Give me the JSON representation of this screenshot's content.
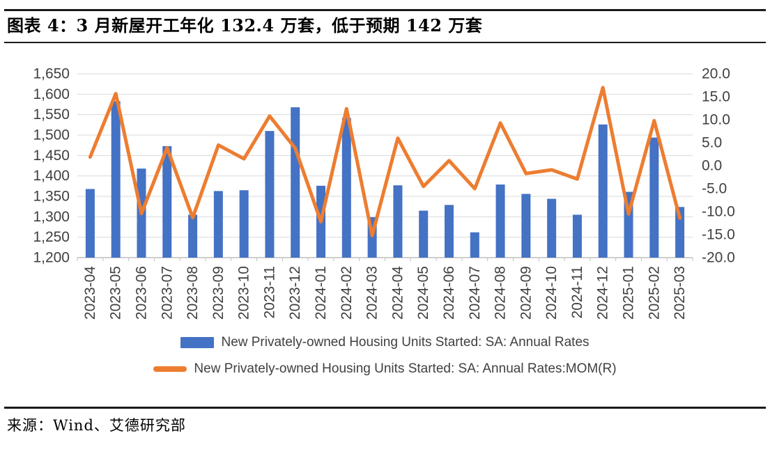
{
  "header": {
    "title": "图表 4：3 月新屋开工年化 132.4 万套，低于预期 142 万套"
  },
  "footer": {
    "source": "来源：Wind、艾德研究部"
  },
  "colors": {
    "bar": "#4472C4",
    "line": "#ED7D31",
    "grid": "#D9D9D9",
    "axis": "#BFBFBF",
    "tick_text": "#404040",
    "rule": "#1A1A1A"
  },
  "chart_data": {
    "type": "bar",
    "subtype": "bar+line-dual-axis",
    "grid": true,
    "legend_position": "bottom",
    "categories": [
      "2023-04",
      "2023-05",
      "2023-06",
      "2023-07",
      "2023-08",
      "2023-09",
      "2023-10",
      "2023-11",
      "2023-12",
      "2024-01",
      "2024-02",
      "2024-03",
      "2024-04",
      "2024-05",
      "2024-06",
      "2024-07",
      "2024-08",
      "2024-09",
      "2024-10",
      "2024-11",
      "2024-12",
      "2025-01",
      "2025-02",
      "2025-03"
    ],
    "series": [
      {
        "name": "New Privately-owned Housing Units Started: SA: Annual Rates",
        "type": "bar",
        "axis": "left",
        "color": "#4472C4",
        "values": [
          1368,
          1583,
          1418,
          1473,
          1305,
          1363,
          1365,
          1510,
          1568,
          1376,
          1542,
          1299,
          1377,
          1315,
          1329,
          1262,
          1379,
          1356,
          1344,
          1305,
          1526,
          1361,
          1494,
          1324
        ]
      },
      {
        "name": "New Privately-owned Housing Units Started: SA: Annual Rates:MOM(R)",
        "type": "line",
        "axis": "right",
        "color": "#ED7D31",
        "values": [
          1.9,
          15.7,
          -10.4,
          3.9,
          -11.3,
          4.5,
          1.5,
          10.8,
          3.8,
          -12.2,
          12.4,
          -15.2,
          6.0,
          -4.5,
          1.1,
          -5.0,
          9.3,
          -1.7,
          -0.9,
          -2.9,
          17.0,
          -10.5,
          9.8,
          -11.4
        ]
      }
    ],
    "left_axis": {
      "min": 1200,
      "max": 1650,
      "step": 50,
      "ticks": [
        "1,650",
        "1,600",
        "1,550",
        "1,500",
        "1,450",
        "1,400",
        "1,350",
        "1,300",
        "1,250",
        "1,200"
      ]
    },
    "right_axis": {
      "min": -20,
      "max": 20,
      "step": 5,
      "ticks": [
        "20.0",
        "15.0",
        "10.0",
        "5.0",
        "0.0",
        "-5.0",
        "-10.0",
        "-15.0",
        "-20.0"
      ]
    }
  }
}
